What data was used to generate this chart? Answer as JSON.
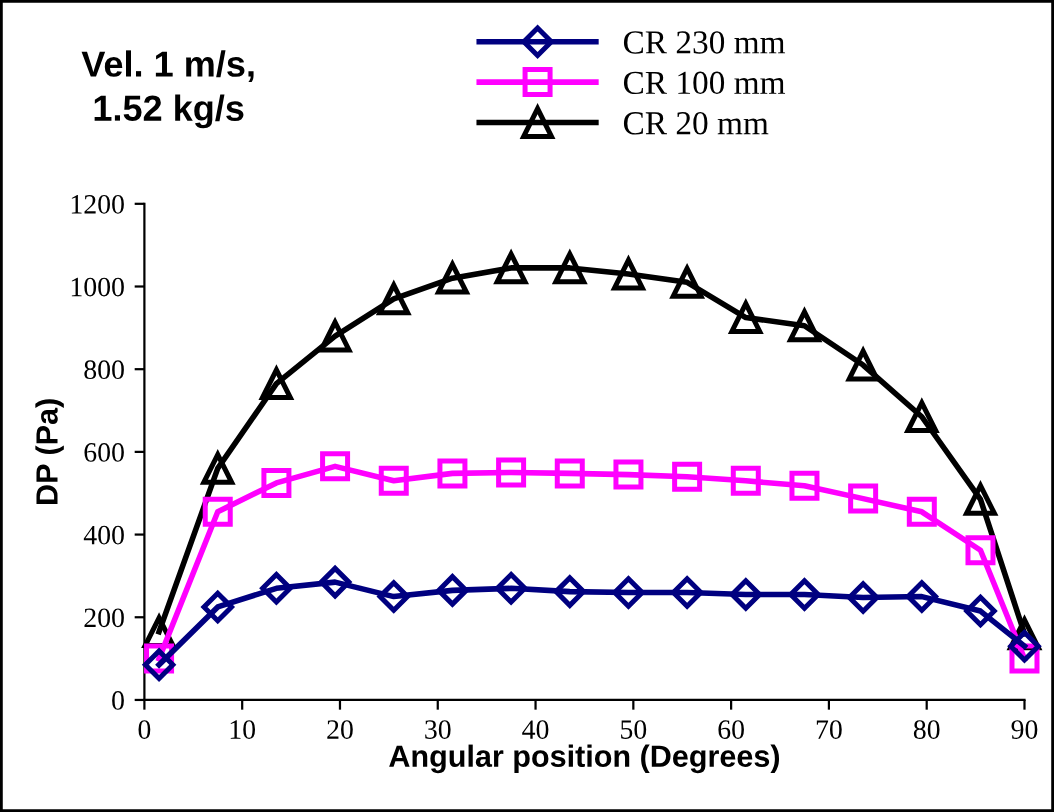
{
  "chart_data": {
    "type": "line",
    "xlabel": "Angular position (Degrees)",
    "ylabel": "DP (Pa)",
    "annotations": [
      "Vel. 1 m/s,\n1.52 kg/s"
    ],
    "x": [
      1.5,
      7.5,
      13.5,
      19.5,
      25.5,
      31.5,
      37.5,
      43.5,
      49.5,
      55.5,
      61.5,
      67.5,
      73.5,
      79.5,
      85.5,
      90
    ],
    "series": [
      {
        "name": "CR 230 mm",
        "color": "#000080",
        "marker": "diamond",
        "values": [
          85,
          225,
          270,
          285,
          250,
          265,
          270,
          262,
          260,
          260,
          255,
          255,
          248,
          250,
          215,
          130
        ]
      },
      {
        "name": "CR 100 mm",
        "color": "#ff00ff",
        "marker": "square",
        "values": [
          100,
          455,
          525,
          565,
          530,
          548,
          550,
          548,
          545,
          540,
          530,
          518,
          487,
          455,
          362,
          100
        ]
      },
      {
        "name": "CR 20 mm",
        "color": "#000000",
        "marker": "triangle",
        "values": [
          165,
          560,
          765,
          880,
          970,
          1020,
          1045,
          1045,
          1030,
          1010,
          925,
          905,
          810,
          685,
          485,
          160
        ]
      }
    ],
    "xlim": [
      0,
      90
    ],
    "ylim": [
      0,
      1200
    ],
    "xticks": [
      0,
      10,
      20,
      30,
      40,
      50,
      60,
      70,
      80,
      90
    ],
    "yticks": [
      0,
      200,
      400,
      600,
      800,
      1000,
      1200
    ],
    "grid": false,
    "legend": "top",
    "line_style": "solid"
  }
}
